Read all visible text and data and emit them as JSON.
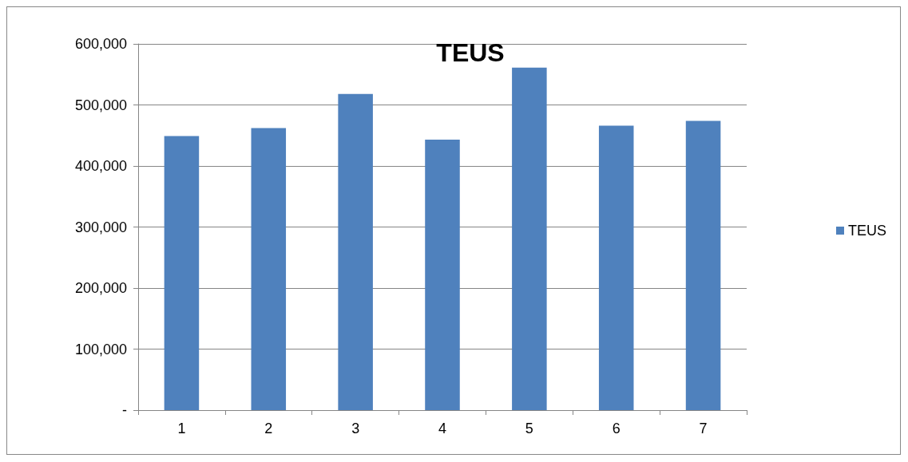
{
  "chart_data": {
    "type": "bar",
    "title": "TEUS",
    "categories": [
      "1",
      "2",
      "3",
      "4",
      "5",
      "6",
      "7"
    ],
    "series": [
      {
        "name": "TEUS",
        "color": "#4f81bd",
        "values": [
          449000,
          462000,
          518000,
          443000,
          561000,
          466000,
          474000
        ]
      }
    ],
    "ylim": [
      0,
      600000
    ],
    "yticks": [
      {
        "value": 0,
        "label": "-"
      },
      {
        "value": 100000,
        "label": "100,000"
      },
      {
        "value": 200000,
        "label": "200,000"
      },
      {
        "value": 300000,
        "label": "300,000"
      },
      {
        "value": 400000,
        "label": "400,000"
      },
      {
        "value": 500000,
        "label": "500,000"
      },
      {
        "value": 600000,
        "label": "600,000"
      }
    ],
    "grid": "y",
    "legend": "right"
  }
}
